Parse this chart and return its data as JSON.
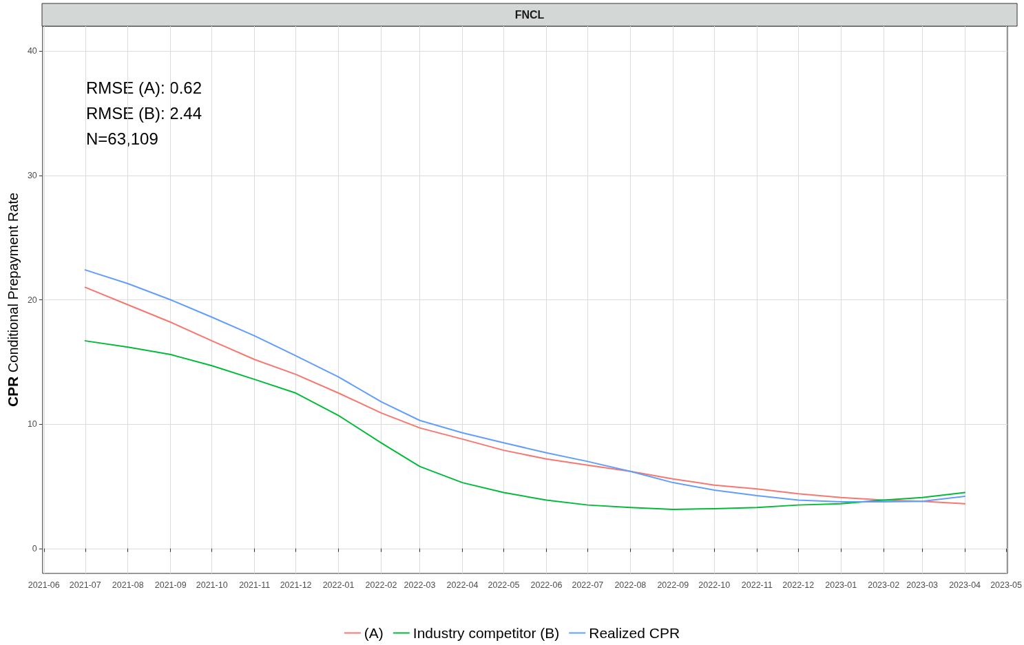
{
  "chart_data": {
    "type": "line",
    "title": "FNCL",
    "ylabel": "CPR Conditional Prepayment Rate",
    "x": [
      "2021-07-01",
      "2021-08-01",
      "2021-09-01",
      "2021-10-01",
      "2021-11-01",
      "2021-12-01",
      "2022-01-01",
      "2022-02-01",
      "2022-03-01",
      "2022-04-01",
      "2022-05-01",
      "2022-06-01",
      "2022-07-01",
      "2022-08-01",
      "2022-09-01",
      "2022-10-01",
      "2022-11-01",
      "2022-12-01",
      "2023-01-01",
      "2023-02-01",
      "2023-03-01",
      "2023-04-01"
    ],
    "series": [
      {
        "name": "(A)",
        "color": "#f8766d",
        "values": [
          21.0,
          19.6,
          18.2,
          16.7,
          15.2,
          14.0,
          12.5,
          10.9,
          9.7,
          8.8,
          7.9,
          7.2,
          6.7,
          6.2,
          5.6,
          5.1,
          4.8,
          4.4,
          4.1,
          3.9,
          3.8,
          3.6
        ]
      },
      {
        "name": "Industry competitor (B)",
        "color": "#00ba38",
        "values": [
          16.7,
          16.2,
          15.6,
          14.7,
          13.6,
          12.5,
          10.7,
          8.5,
          6.6,
          5.3,
          4.5,
          3.9,
          3.5,
          3.3,
          3.15,
          3.2,
          3.3,
          3.5,
          3.6,
          3.9,
          4.1,
          4.5
        ]
      },
      {
        "name": "Realized CPR",
        "color": "#619cff",
        "values": [
          22.4,
          21.3,
          20.0,
          18.6,
          17.1,
          15.5,
          13.8,
          11.8,
          10.3,
          9.3,
          8.5,
          7.7,
          7.0,
          6.2,
          5.3,
          4.7,
          4.25,
          3.9,
          3.75,
          3.75,
          3.8,
          4.2
        ]
      }
    ],
    "xlim": [
      "2021-05-31",
      "2023-05-02"
    ],
    "xticks": [
      "2021-06",
      "2021-07",
      "2021-08",
      "2021-09",
      "2021-10",
      "2021-11",
      "2021-12",
      "2022-01",
      "2022-02",
      "2022-03",
      "2022-04",
      "2022-05",
      "2022-06",
      "2022-07",
      "2022-08",
      "2022-09",
      "2022-10",
      "2022-11",
      "2022-12",
      "2023-01",
      "2023-02",
      "2023-03",
      "2023-04",
      "2023-05"
    ],
    "ylim": [
      -2,
      42
    ],
    "yticks": [
      0,
      10,
      20,
      30,
      40
    ],
    "annotations": [
      "RMSE (A): 0.62",
      "RMSE (B): 2.44",
      "N=63,109"
    ],
    "grid": true,
    "legend": "bottom",
    "marker": "none",
    "line_style": "solid"
  }
}
